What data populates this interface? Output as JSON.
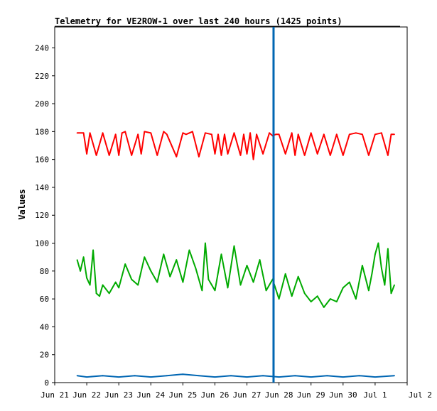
{
  "chart_data": {
    "type": "line",
    "title": "Telemetry for VE2ROW-1 over last 240 hours (1425 points)",
    "xlabel": "",
    "ylabel": "Values",
    "ylim": [
      0,
      255
    ],
    "y_ticks": [
      0,
      20,
      40,
      60,
      80,
      100,
      120,
      140,
      160,
      180,
      200,
      220,
      240
    ],
    "x_range_days": [
      0,
      11
    ],
    "x_ticks": [
      {
        "day": 0,
        "label": "Jun 21"
      },
      {
        "day": 1,
        "label": "Jun 22"
      },
      {
        "day": 2,
        "label": "Jun 23"
      },
      {
        "day": 3,
        "label": "Jun 24"
      },
      {
        "day": 4,
        "label": "Jun 25"
      },
      {
        "day": 5,
        "label": "Jun 26"
      },
      {
        "day": 6,
        "label": "Jun 27"
      },
      {
        "day": 7,
        "label": "Jun 28"
      },
      {
        "day": 8,
        "label": "Jun 29"
      },
      {
        "day": 9,
        "label": "Jun 30"
      },
      {
        "day": 10,
        "label": "Jul 1"
      },
      {
        "day": 11,
        "label": "Jul 2"
      }
    ],
    "grid": false,
    "legend": "none",
    "marker_day": 6.83,
    "marker_color": "#0066b3",
    "series": [
      {
        "color": "#ff0000",
        "x": [
          0.7,
          0.9,
          1.0,
          1.1,
          1.3,
          1.5,
          1.7,
          1.9,
          2.0,
          2.1,
          2.2,
          2.4,
          2.6,
          2.7,
          2.8,
          3.0,
          3.2,
          3.4,
          3.5,
          3.8,
          4.0,
          4.1,
          4.3,
          4.5,
          4.7,
          4.9,
          5.0,
          5.1,
          5.2,
          5.3,
          5.4,
          5.6,
          5.8,
          5.9,
          6.0,
          6.1,
          6.2,
          6.3,
          6.5,
          6.7,
          6.8,
          6.9,
          7.0,
          7.2,
          7.4,
          7.5,
          7.6,
          7.8,
          8.0,
          8.2,
          8.4,
          8.6,
          8.8,
          9.0,
          9.2,
          9.4,
          9.6,
          9.8,
          10.0,
          10.2,
          10.4,
          10.5,
          10.6
        ],
        "values": [
          179,
          179,
          164,
          179,
          163,
          179,
          163,
          178,
          163,
          179,
          180,
          163,
          178,
          164,
          180,
          179,
          163,
          180,
          178,
          162,
          179,
          178,
          180,
          162,
          179,
          178,
          164,
          178,
          163,
          178,
          164,
          179,
          163,
          178,
          164,
          179,
          160,
          178,
          164,
          179,
          177,
          178,
          178,
          164,
          179,
          163,
          178,
          163,
          179,
          164,
          178,
          163,
          178,
          163,
          178,
          179,
          178,
          163,
          178,
          179,
          163,
          178,
          178
        ]
      },
      {
        "color": "#00aa00",
        "x": [
          0.7,
          0.8,
          0.9,
          1.0,
          1.1,
          1.2,
          1.3,
          1.4,
          1.5,
          1.7,
          1.9,
          2.0,
          2.2,
          2.4,
          2.6,
          2.8,
          3.0,
          3.2,
          3.4,
          3.5,
          3.6,
          3.8,
          4.0,
          4.2,
          4.4,
          4.6,
          4.7,
          4.8,
          5.0,
          5.2,
          5.4,
          5.6,
          5.8,
          6.0,
          6.2,
          6.4,
          6.6,
          6.8,
          7.0,
          7.2,
          7.4,
          7.6,
          7.8,
          8.0,
          8.2,
          8.4,
          8.6,
          8.8,
          9.0,
          9.2,
          9.4,
          9.6,
          9.8,
          9.9,
          10.0,
          10.1,
          10.2,
          10.3,
          10.4,
          10.5,
          10.6
        ],
        "values": [
          88,
          80,
          90,
          75,
          70,
          95,
          64,
          62,
          70,
          64,
          72,
          68,
          85,
          74,
          70,
          90,
          80,
          72,
          92,
          84,
          76,
          88,
          72,
          95,
          82,
          66,
          100,
          74,
          66,
          92,
          68,
          98,
          70,
          84,
          72,
          88,
          66,
          74,
          60,
          78,
          62,
          76,
          64,
          58,
          62,
          54,
          60,
          58,
          68,
          72,
          60,
          84,
          66,
          78,
          92,
          100,
          82,
          70,
          96,
          64,
          70
        ]
      },
      {
        "color": "#0066b3",
        "x": [
          0.7,
          1.0,
          1.5,
          2.0,
          2.5,
          3.0,
          3.5,
          4.0,
          4.5,
          5.0,
          5.5,
          6.0,
          6.5,
          7.0,
          7.5,
          8.0,
          8.5,
          9.0,
          9.5,
          10.0,
          10.6
        ],
        "values": [
          5,
          4,
          5,
          4,
          5,
          4,
          5,
          6,
          5,
          4,
          5,
          4,
          5,
          4,
          5,
          4,
          5,
          4,
          5,
          4,
          5
        ]
      }
    ]
  }
}
